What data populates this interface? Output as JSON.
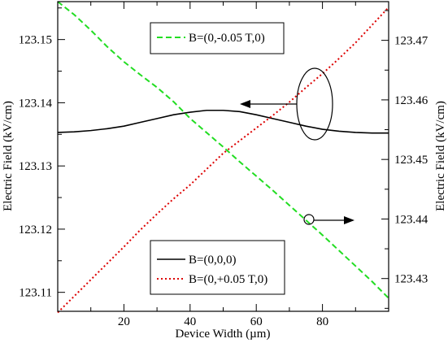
{
  "chart_data": {
    "type": "line",
    "xlabel": "Device Width (µm)",
    "ylabel_left": "Electric Field (kV/cm)",
    "ylabel_right": "Electric Field (kV/cm)",
    "xlim": [
      0,
      100
    ],
    "ylim_left": [
      123.107,
      123.156
    ],
    "ylim_right": [
      123.4245,
      123.4765
    ],
    "x_ticks": [
      20,
      40,
      60,
      80
    ],
    "y_ticks_left": [
      123.11,
      123.12,
      123.13,
      123.14,
      123.15
    ],
    "y_ticks_left_labels": [
      "123.11",
      "123.12",
      "123.13",
      "123.14",
      "123.15"
    ],
    "y_ticks_right": [
      123.43,
      123.44,
      123.45,
      123.46,
      123.47
    ],
    "y_ticks_right_labels": [
      "123.43",
      "123.44",
      "123.45",
      "123.46",
      "123.47"
    ],
    "grid": false,
    "series": [
      {
        "name": "B=(0,0,0)",
        "axis": "left",
        "color": "#000000",
        "style": "solid",
        "x": [
          0,
          5,
          10,
          15,
          20,
          25,
          30,
          35,
          40,
          45,
          50,
          55,
          60,
          65,
          70,
          75,
          80,
          85,
          90,
          95,
          100
        ],
        "y": [
          123.1353,
          123.1354,
          123.1356,
          123.1359,
          123.1363,
          123.1369,
          123.1375,
          123.1381,
          123.1385,
          123.1388,
          123.1388,
          123.1386,
          123.1381,
          123.1375,
          123.1369,
          123.1363,
          123.1358,
          123.1355,
          123.1353,
          123.1352,
          123.1352
        ]
      },
      {
        "name": "B=(0,-0.05 T,0)",
        "axis": "right",
        "color": "#22dd22",
        "style": "dashed",
        "x": [
          0,
          5,
          10,
          15,
          20,
          25,
          30,
          35,
          40,
          45,
          50,
          55,
          60,
          65,
          70,
          75,
          80,
          85,
          90,
          95,
          100
        ],
        "y": [
          123.4765,
          123.4743,
          123.4717,
          123.4689,
          123.4664,
          123.4642,
          123.4621,
          123.4597,
          123.4569,
          123.4545,
          123.4521,
          123.4496,
          123.4472,
          123.4448,
          123.4423,
          123.4398,
          123.4373,
          123.4347,
          123.4321,
          123.4295,
          123.4267
        ]
      },
      {
        "name": "B=(0,+0.05 T,0)",
        "axis": "left",
        "color": "#dd0000",
        "style": "dotted",
        "x": [
          0,
          5,
          10,
          15,
          20,
          25,
          30,
          35,
          40,
          45,
          50,
          55,
          60,
          65,
          70,
          75,
          80,
          85,
          90,
          95,
          100
        ],
        "y": [
          123.1068,
          123.1094,
          123.112,
          123.1146,
          123.1172,
          123.1199,
          123.1224,
          123.1248,
          123.127,
          123.1295,
          123.132,
          123.134,
          123.136,
          123.138,
          123.1401,
          123.1424,
          123.1446,
          123.147,
          123.1495,
          123.1523,
          123.1551
        ]
      }
    ],
    "legends": [
      {
        "placement": "top-center",
        "entries": [
          "B=(0,-0.05 T,0)"
        ]
      },
      {
        "placement": "bottom-center",
        "entries": [
          "B=(0,0,0)",
          "B=(0,+0.05 T,0)"
        ]
      }
    ],
    "annotations": [
      {
        "type": "ellipse-with-arrow",
        "target_series": "B=(0,0,0)",
        "points_to": "left axis"
      },
      {
        "type": "circle-with-arrow",
        "target_series": "B=(0,-0.05 T,0)",
        "points_to": "right axis"
      }
    ]
  }
}
